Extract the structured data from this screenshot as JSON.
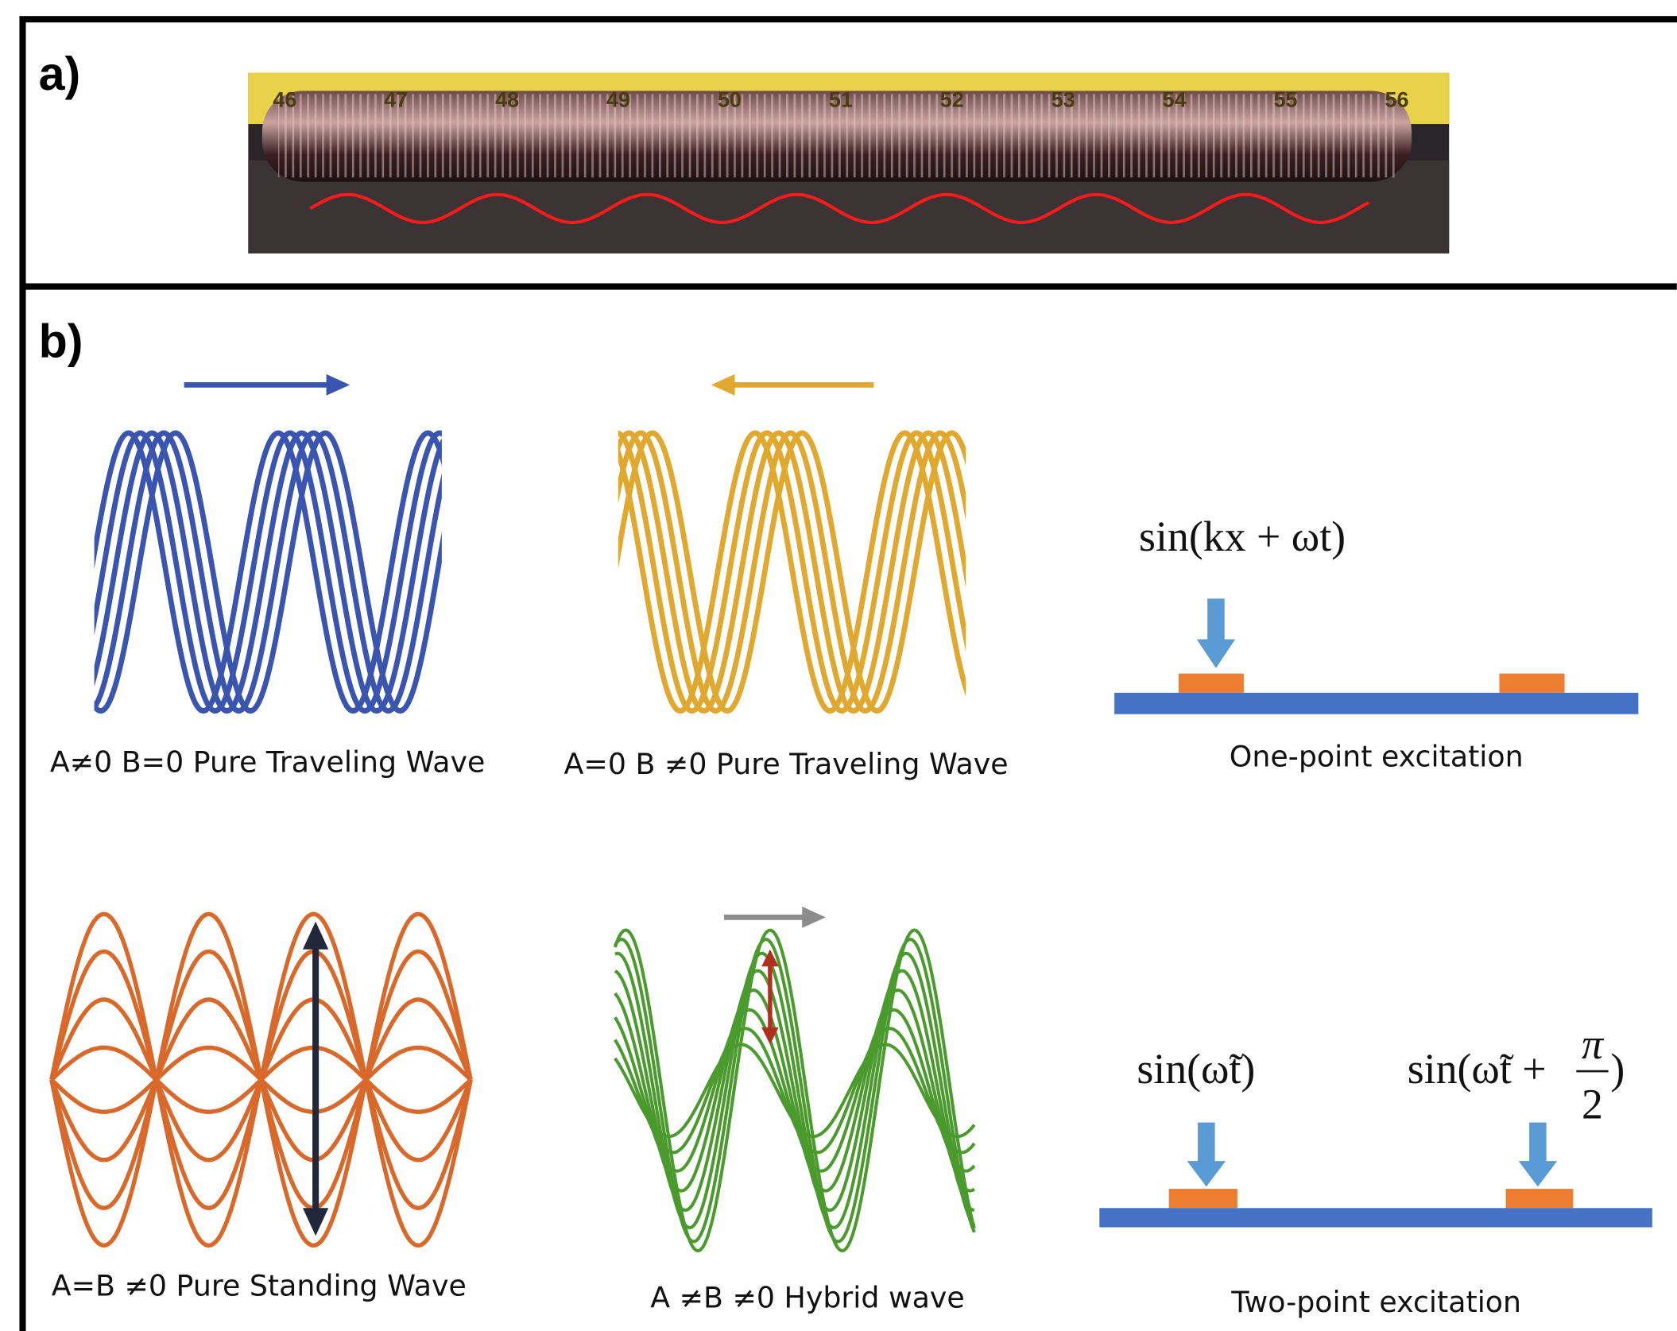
{
  "panel_a": {
    "label": "a)",
    "ruler_labels": [
      "46",
      "47",
      "48",
      "49",
      "50",
      "51",
      "52",
      "53",
      "54",
      "55",
      "56"
    ]
  },
  "panel_b": {
    "label": "b)",
    "blue_wave": {
      "caption": "A≠0 B=0 Pure Traveling Wave"
    },
    "gold_wave": {
      "caption": "A=0 B ≠0 Pure Traveling Wave"
    },
    "one_point": {
      "formula": "sin(kx + ωt)",
      "caption": "One-point excitation"
    },
    "standing_wave": {
      "caption": "A=B ≠0 Pure Standing Wave"
    },
    "hybrid_wave": {
      "caption": "A ≠B ≠0 Hybrid wave"
    },
    "two_point": {
      "formula_left": "sin(ω̃t)",
      "formula_right": {
        "prefix": "sin(ω̃t +",
        "numerator": "π",
        "denominator": "2",
        "suffix": ")"
      },
      "caption": "Two-point excitation"
    }
  }
}
